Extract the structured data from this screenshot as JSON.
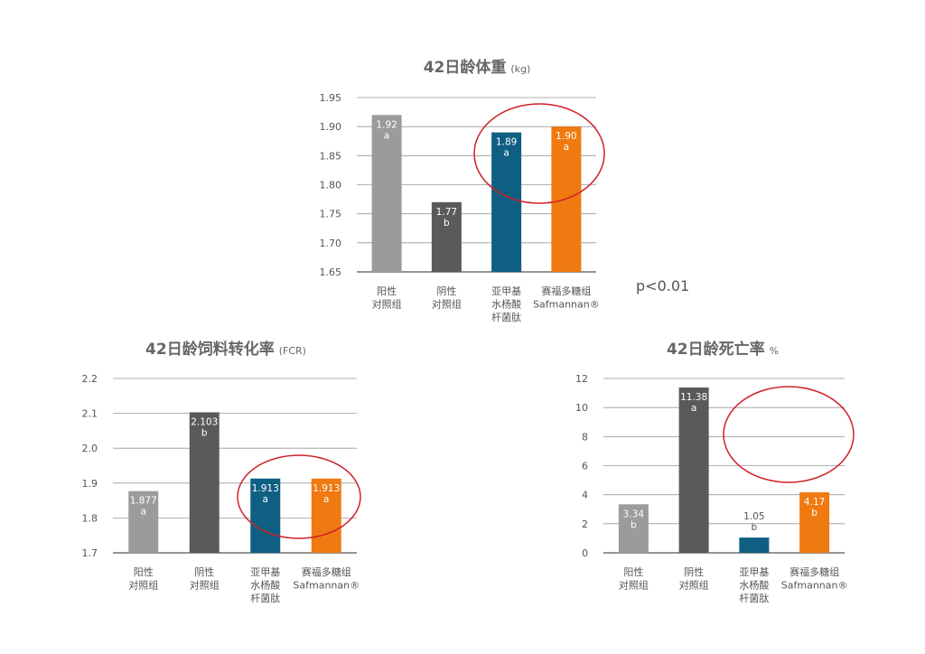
{
  "chart_data": [
    {
      "type": "bar",
      "title": "42日龄体重",
      "unit": "(kg)",
      "categories": [
        [
          "阳性",
          "对照组"
        ],
        [
          "阴性",
          "对照组"
        ],
        [
          "亚甲基",
          "水杨酸",
          "杆菌肽"
        ],
        [
          "赛福多糖组",
          "Safmannan®"
        ]
      ],
      "values": [
        1.92,
        1.77,
        1.89,
        1.9
      ],
      "value_labels": [
        "1.92",
        "1.77",
        "1.89",
        "1.90"
      ],
      "letters": [
        "a",
        "b",
        "a",
        "a"
      ],
      "colors": [
        "#9b9b9b",
        "#5a5a5a",
        "#0f5f82",
        "#ef7a11"
      ],
      "ylim": [
        1.65,
        1.95
      ],
      "yticks": [
        1.65,
        {
          "value": 1.7,
          "label": "1.70"
        },
        1.75,
        {
          "value": 1.8,
          "label": "1.80"
        },
        1.85,
        {
          "value": 1.9,
          "label": "1.90"
        },
        1.95
      ],
      "grid": true,
      "annotation": "p<0.01"
    },
    {
      "type": "bar",
      "title": "42日龄饲料转化率",
      "unit": "(FCR)",
      "categories": [
        [
          "阳性",
          "对照组"
        ],
        [
          "阴性",
          "对照组"
        ],
        [
          "亚甲基",
          "水杨酸",
          "杆菌肽"
        ],
        [
          "赛福多糖组",
          "Safmannan®"
        ]
      ],
      "values": [
        1.877,
        2.103,
        1.913,
        1.913
      ],
      "letters": [
        "a",
        "b",
        "a",
        "a"
      ],
      "colors": [
        "#9b9b9b",
        "#5a5a5a",
        "#0f5f82",
        "#ef7a11"
      ],
      "ylim": [
        1.7,
        2.2
      ],
      "yticks": [
        1.7,
        1.8,
        1.9,
        {
          "value": 2,
          "label": "2.0"
        },
        2.1,
        2.2
      ],
      "grid": true
    },
    {
      "type": "bar",
      "title": "42日龄死亡率",
      "unit": "%",
      "categories": [
        [
          "阳性",
          "对照组"
        ],
        [
          "阴性",
          "对照组"
        ],
        [
          "亚甲基",
          "水杨酸",
          "杆菌肽"
        ],
        [
          "赛福多糖组",
          "Safmannan®"
        ]
      ],
      "values": [
        3.34,
        11.38,
        1.05,
        4.17
      ],
      "letters": [
        "b",
        "a",
        "b",
        "b"
      ],
      "colors": [
        "#9b9b9b",
        "#5a5a5a",
        "#0f5f82",
        "#ef7a11"
      ],
      "ylim": [
        0,
        12
      ],
      "yticks": [
        0,
        2,
        4,
        6,
        8,
        10,
        12
      ],
      "grid": true
    }
  ]
}
